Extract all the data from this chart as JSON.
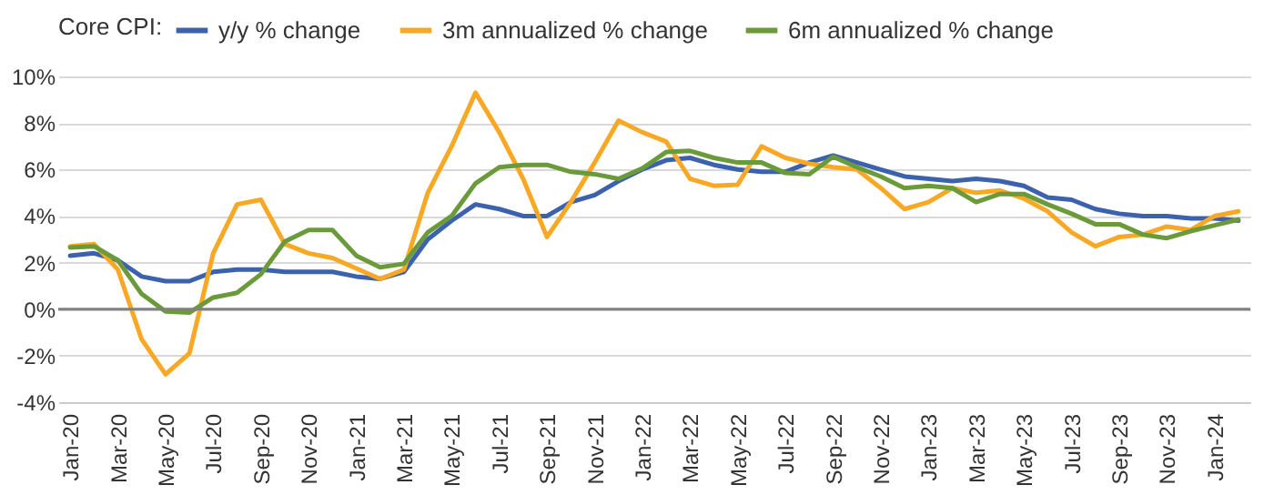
{
  "chart_data": {
    "type": "line",
    "legend_title": "Core CPI:",
    "legend": "top",
    "categories": [
      "Jan-20",
      null,
      "Mar-20",
      null,
      "May-20",
      null,
      "Jul-20",
      null,
      "Sep-20",
      null,
      "Nov-20",
      null,
      "Jan-21",
      null,
      "Mar-21",
      null,
      "May-21",
      null,
      "Jul-21",
      null,
      "Sep-21",
      null,
      "Nov-21",
      null,
      "Jan-22",
      null,
      "Mar-22",
      null,
      "May-22",
      null,
      "Jul-22",
      null,
      "Sep-22",
      null,
      "Nov-22",
      null,
      "Jan-23",
      null,
      "Mar-23",
      null,
      "May-23",
      null,
      "Jul-23",
      null,
      "Sep-23",
      null,
      "Nov-23",
      null,
      "Jan-24",
      null
    ],
    "series": [
      {
        "name": "y/y % change",
        "color": "#3c62ad",
        "values": [
          2.3,
          2.4,
          2.1,
          1.4,
          1.2,
          1.2,
          1.6,
          1.7,
          1.7,
          1.6,
          1.6,
          1.6,
          1.4,
          1.3,
          1.6,
          3.0,
          3.8,
          4.5,
          4.3,
          4.0,
          4.0,
          4.6,
          4.9,
          5.5,
          6.0,
          6.4,
          6.5,
          6.2,
          6.0,
          5.9,
          5.9,
          6.3,
          6.6,
          6.3,
          6.0,
          5.7,
          5.6,
          5.5,
          5.6,
          5.5,
          5.3,
          4.8,
          4.7,
          4.3,
          4.1,
          4.0,
          4.0,
          3.9,
          3.9,
          3.8
        ]
      },
      {
        "name": "3m annualized % change",
        "color": "#f9a825",
        "values": [
          2.7,
          2.8,
          1.7,
          -1.3,
          -2.8,
          -1.9,
          2.4,
          4.5,
          4.7,
          2.8,
          2.4,
          2.2,
          1.75,
          1.3,
          1.7,
          5.0,
          7.0,
          9.3,
          7.6,
          5.6,
          3.1,
          4.6,
          6.3,
          8.1,
          7.6,
          7.2,
          5.6,
          5.3,
          5.35,
          7.0,
          6.5,
          6.25,
          6.1,
          6.0,
          5.2,
          4.3,
          4.6,
          5.2,
          5.0,
          5.1,
          4.75,
          4.2,
          3.3,
          2.7,
          3.1,
          3.2,
          3.55,
          3.4,
          4.0,
          4.2
        ]
      },
      {
        "name": "6m annualized % change",
        "color": "#6b9a3a",
        "values": [
          2.65,
          2.7,
          2.1,
          0.65,
          -0.1,
          -0.15,
          0.5,
          0.7,
          1.5,
          2.9,
          3.4,
          3.4,
          2.3,
          1.8,
          1.95,
          3.3,
          4.0,
          5.4,
          6.1,
          6.2,
          6.2,
          5.9,
          5.8,
          5.6,
          6.05,
          6.75,
          6.8,
          6.5,
          6.3,
          6.3,
          5.85,
          5.8,
          6.55,
          6.1,
          5.7,
          5.2,
          5.3,
          5.2,
          4.6,
          4.95,
          4.95,
          4.5,
          4.1,
          3.65,
          3.65,
          3.2,
          3.05,
          3.35,
          3.6,
          3.85
        ]
      }
    ],
    "ylim": [
      -4,
      10
    ],
    "yticks": [
      {
        "value": -4,
        "label": "-4%"
      },
      {
        "value": -2,
        "label": "-2%"
      },
      {
        "value": 0,
        "label": "0%"
      },
      {
        "value": 2,
        "label": "2%"
      },
      {
        "value": 4,
        "label": "4%"
      },
      {
        "value": 6,
        "label": "6%"
      },
      {
        "value": 8,
        "label": "8%"
      },
      {
        "value": 10,
        "label": "10%"
      }
    ],
    "grid": "y",
    "line_style": "solid",
    "ref_lines": [
      {
        "axis": "y",
        "value": 0,
        "color": "#808080"
      }
    ]
  }
}
